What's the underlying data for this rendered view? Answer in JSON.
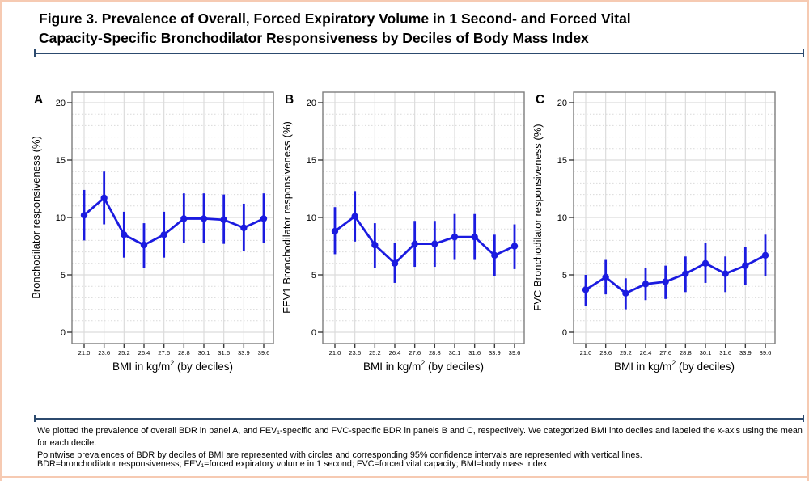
{
  "header": {
    "title_lines": [
      "Figure 3. Prevalence of Overall, Forced Expiratory Volume in 1 Second- and Forced Vital",
      "Capacity-Specific Bronchodilator Responsiveness by Deciles of Body Mass Index"
    ]
  },
  "colors": {
    "data_blue": "#1b1be0",
    "rule_navy": "#2c4a6e",
    "frame_salmon": "#f6cab2",
    "grid_gray": "#dcdcdc",
    "panel_border_gray": "#7d7d7d"
  },
  "footer": {
    "caption_lines": [
      "We plotted the prevalence of overall BDR in panel A, and FEV₁-specific and FVC-specific BDR in panels B and C, respectively. We categorized BMI into deciles and labeled the x-axis using the mean for each decile.",
      "Pointwise prevalences of BDR by deciles of BMI are represented with circles and corresponding 95% confidence intervals are represented with vertical lines."
    ],
    "abbreviations": "BDR=bronchodilator responsiveness; FEV₁=forced expiratory volume in 1 second; FVC=forced vital capacity; BMI=body mass index"
  },
  "chart_data": [
    {
      "type": "line",
      "panel": "A",
      "ylabel": "Bronchodilator responsiveness (%)",
      "xlabel_pre": "BMI in kg/m",
      "xlabel_sup": "2",
      "xlabel_post": " (by deciles)",
      "categories": [
        "21.0",
        "23.6",
        "25.2",
        "26.4",
        "27.6",
        "28.8",
        "30.1",
        "31.6",
        "33.9",
        "39.6"
      ],
      "ylim": [
        0,
        20
      ],
      "yticks": [
        0,
        5,
        10,
        15,
        20
      ],
      "grid": true,
      "legend": "none",
      "marker": "circle",
      "error_bars": "95% CI",
      "series": [
        {
          "name": "Overall BDR prevalence",
          "values": [
            10.2,
            11.7,
            8.5,
            7.6,
            8.5,
            9.9,
            9.9,
            9.8,
            9.1,
            9.9
          ],
          "ci_lower": [
            8.0,
            9.4,
            6.5,
            5.6,
            6.5,
            7.8,
            7.8,
            7.7,
            7.1,
            7.8
          ],
          "ci_upper": [
            12.4,
            14.0,
            10.5,
            9.5,
            10.5,
            12.1,
            12.1,
            12.0,
            11.2,
            12.1
          ]
        }
      ]
    },
    {
      "type": "line",
      "panel": "B",
      "ylabel": "FEV1 Bronchodilator responsiveness (%)",
      "xlabel_pre": "BMI in kg/m",
      "xlabel_sup": "2",
      "xlabel_post": " (by deciles)",
      "categories": [
        "21.0",
        "23.6",
        "25.2",
        "26.4",
        "27.6",
        "28.8",
        "30.1",
        "31.6",
        "33.9",
        "39.6"
      ],
      "ylim": [
        0,
        20
      ],
      "yticks": [
        0,
        5,
        10,
        15,
        20
      ],
      "grid": true,
      "legend": "none",
      "marker": "circle",
      "error_bars": "95% CI",
      "series": [
        {
          "name": "FEV1-specific BDR prevalence",
          "values": [
            8.8,
            10.1,
            7.6,
            6.0,
            7.7,
            7.7,
            8.3,
            8.3,
            6.7,
            7.5
          ],
          "ci_lower": [
            6.8,
            7.9,
            5.6,
            4.3,
            5.7,
            5.7,
            6.3,
            6.3,
            4.9,
            5.5
          ],
          "ci_upper": [
            10.9,
            12.3,
            9.5,
            7.8,
            9.7,
            9.7,
            10.3,
            10.3,
            8.5,
            9.4
          ]
        }
      ]
    },
    {
      "type": "line",
      "panel": "C",
      "ylabel": "FVC Bronchodilator responsiveness (%)",
      "xlabel_pre": "BMI in kg/m",
      "xlabel_sup": "2",
      "xlabel_post": " (by deciles)",
      "categories": [
        "21.0",
        "23.6",
        "25.2",
        "26.4",
        "27.6",
        "28.8",
        "30.1",
        "31.6",
        "33.9",
        "39.6"
      ],
      "ylim": [
        0,
        20
      ],
      "yticks": [
        0,
        5,
        10,
        15,
        20
      ],
      "grid": true,
      "legend": "none",
      "marker": "circle",
      "error_bars": "95% CI",
      "series": [
        {
          "name": "FVC-specific BDR prevalence",
          "values": [
            3.7,
            4.8,
            3.4,
            4.2,
            4.4,
            5.1,
            6.0,
            5.1,
            5.8,
            6.7
          ],
          "ci_lower": [
            2.3,
            3.3,
            2.0,
            2.8,
            2.9,
            3.5,
            4.3,
            3.5,
            4.1,
            4.9
          ],
          "ci_upper": [
            5.0,
            6.3,
            4.7,
            5.6,
            5.8,
            6.6,
            7.8,
            6.6,
            7.4,
            8.5
          ]
        }
      ]
    }
  ]
}
